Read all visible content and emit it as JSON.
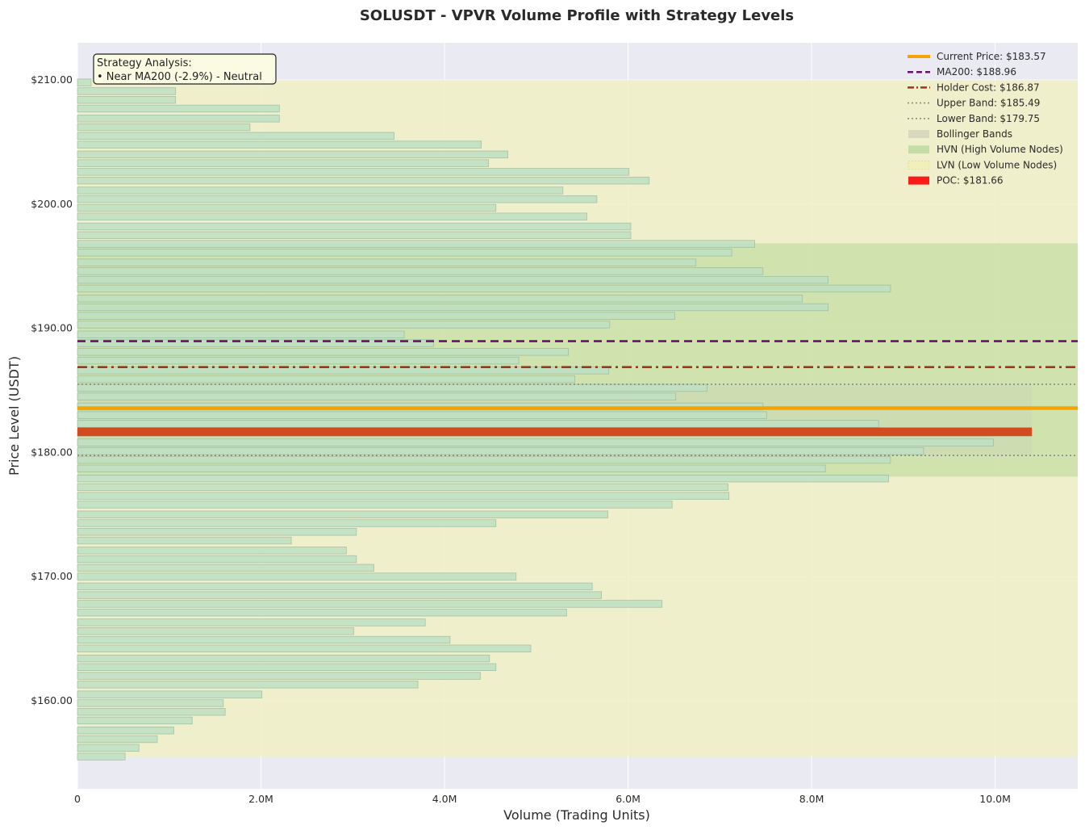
{
  "chart_data": {
    "type": "bar",
    "orientation": "horizontal",
    "title": "SOLUSDT - VPVR Volume Profile with Strategy Levels",
    "xlabel": "Volume (Trading Units)",
    "ylabel": "Price Level (USDT)",
    "xlim": [
      0,
      10900000
    ],
    "ylim": [
      152.9,
      213.0
    ],
    "xticks": [
      0,
      2000000,
      4000000,
      6000000,
      8000000,
      10000000
    ],
    "xtick_labels": [
      "0",
      "2.0M",
      "4.0M",
      "6.0M",
      "8.0M",
      "10.0M"
    ],
    "yticks": [
      160,
      170,
      180,
      190,
      200,
      210
    ],
    "ytick_labels": [
      "$160.00",
      "$170.00",
      "$180.00",
      "$190.00",
      "$200.00",
      "$210.00"
    ],
    "grid": true,
    "legend_position": "top-right",
    "price_levels": [
      155.5,
      156.2,
      156.9,
      157.6,
      158.4,
      159.1,
      159.8,
      160.5,
      161.3,
      162.0,
      162.7,
      163.4,
      164.2,
      164.9,
      165.6,
      166.3,
      167.1,
      167.8,
      168.5,
      169.2,
      170.0,
      170.7,
      171.4,
      172.1,
      172.9,
      173.6,
      174.3,
      175.0,
      175.8,
      176.5,
      177.2,
      177.9,
      178.7,
      179.4,
      180.1,
      180.8,
      181.6,
      182.3,
      183.0,
      183.7,
      184.5,
      185.2,
      185.9,
      186.6,
      187.4,
      188.1,
      188.8,
      189.5,
      190.3,
      191.0,
      191.7,
      192.4,
      193.2,
      193.9,
      194.6,
      195.3,
      196.1,
      196.8,
      197.5,
      198.2,
      199.0,
      199.7,
      200.4,
      201.1,
      201.9,
      202.6,
      203.3,
      204.0,
      204.8,
      205.5,
      206.2,
      206.9,
      207.7,
      208.4,
      209.1,
      209.8
    ],
    "volumes": [
      520000,
      670000,
      870000,
      1050000,
      1250000,
      1610000,
      1590000,
      2010000,
      3710000,
      4390000,
      4560000,
      4490000,
      4940000,
      4060000,
      3010000,
      3790000,
      5330000,
      6370000,
      5710000,
      5610000,
      4780000,
      3230000,
      3040000,
      2930000,
      2330000,
      3040000,
      4560000,
      5780000,
      6480000,
      7100000,
      7090000,
      8840000,
      8150000,
      8860000,
      9220000,
      9980000,
      10400000,
      8730000,
      7510000,
      7470000,
      6520000,
      6860000,
      5420000,
      5790000,
      4810000,
      5350000,
      3880000,
      3560000,
      5800000,
      6510000,
      8180000,
      7900000,
      8860000,
      8180000,
      7470000,
      6740000,
      7130000,
      7380000,
      6030000,
      6030000,
      5550000,
      4560000,
      5660000,
      5290000,
      6230000,
      6010000,
      4480000,
      4690000,
      4400000,
      3450000,
      1880000,
      2200000,
      2200000,
      1070000,
      1070000,
      150000
    ],
    "poc": 181.66,
    "hvn_range": [
      178.05,
      196.85
    ],
    "lvn_range": [
      155.5,
      210.0
    ],
    "bollinger_range": [
      179.75,
      185.49
    ],
    "lines": {
      "current_price": 183.57,
      "ma200": 188.96,
      "holder_cost": 186.87,
      "upper_band": 185.49,
      "lower_band": 179.75
    },
    "legend": [
      {
        "key": "current",
        "label": "Current Price: $183.57",
        "color": "#f5a300",
        "style": "solid-thick"
      },
      {
        "key": "ma200",
        "label": "MA200: $188.96",
        "color": "#6a0f6e",
        "style": "dashed"
      },
      {
        "key": "holder",
        "label": "Holder Cost: $186.87",
        "color": "#a0341d",
        "style": "dashdot"
      },
      {
        "key": "upper",
        "label": "Upper Band: $185.49",
        "color": "#8a8a8a",
        "style": "dotted"
      },
      {
        "key": "lower",
        "label": "Lower Band: $179.75",
        "color": "#8a8a8a",
        "style": "dotted"
      },
      {
        "key": "bollinger",
        "label": "Bollinger Bands",
        "color": "#d9d9c0",
        "style": "patch"
      },
      {
        "key": "hvn",
        "label": "HVN (High Volume Nodes)",
        "color": "#c5dea8",
        "style": "patch"
      },
      {
        "key": "lvn",
        "label": "LVN (Low Volume Nodes)",
        "color": "#f2f0b8",
        "style": "patch-hatch"
      },
      {
        "key": "poc",
        "label": "POC: $181.66",
        "color": "#ff1a1a",
        "style": "patch"
      }
    ],
    "annotation": {
      "title": "Strategy Analysis:",
      "text": "• Near MA200 (-2.9%) - Neutral"
    },
    "colors": {
      "bar_fill": "#bfe0c4",
      "bar_edge": "#98b9a0",
      "poc_bar": "#d24b1f",
      "plot_bg": "#eaeaf2",
      "lvn_band": "#f1f0c4",
      "hvn_band": "#c8e0a8"
    }
  }
}
